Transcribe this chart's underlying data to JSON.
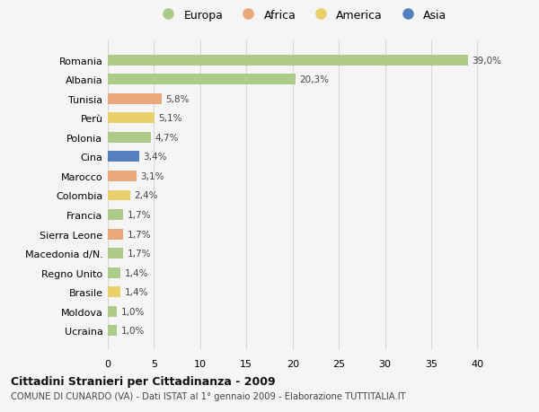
{
  "categories": [
    "Romania",
    "Albania",
    "Tunisia",
    "Perù",
    "Polonia",
    "Cina",
    "Marocco",
    "Colombia",
    "Francia",
    "Sierra Leone",
    "Macedonia d/N.",
    "Regno Unito",
    "Brasile",
    "Moldova",
    "Ucraina"
  ],
  "values": [
    39.0,
    20.3,
    5.8,
    5.1,
    4.7,
    3.4,
    3.1,
    2.4,
    1.7,
    1.7,
    1.7,
    1.4,
    1.4,
    1.0,
    1.0
  ],
  "labels": [
    "39,0%",
    "20,3%",
    "5,8%",
    "5,1%",
    "4,7%",
    "3,4%",
    "3,1%",
    "2,4%",
    "1,7%",
    "1,7%",
    "1,7%",
    "1,4%",
    "1,4%",
    "1,0%",
    "1,0%"
  ],
  "continents": [
    "Europa",
    "Europa",
    "Africa",
    "America",
    "Europa",
    "Asia",
    "Africa",
    "America",
    "Europa",
    "Africa",
    "Europa",
    "Europa",
    "America",
    "Europa",
    "Europa"
  ],
  "colors": {
    "Europa": "#aeca88",
    "Africa": "#e8a87a",
    "America": "#e8d06a",
    "Asia": "#5580c0"
  },
  "xlim": [
    0,
    42
  ],
  "xticks": [
    0,
    5,
    10,
    15,
    20,
    25,
    30,
    35,
    40
  ],
  "title": "Cittadini Stranieri per Cittadinanza - 2009",
  "subtitle": "COMUNE DI CUNARDO (VA) - Dati ISTAT al 1° gennaio 2009 - Elaborazione TUTTITALIA.IT",
  "bg_color": "#f5f5f5",
  "grid_color": "#d8d8d8",
  "bar_height": 0.55,
  "legend_entries": [
    "Europa",
    "Africa",
    "America",
    "Asia"
  ]
}
